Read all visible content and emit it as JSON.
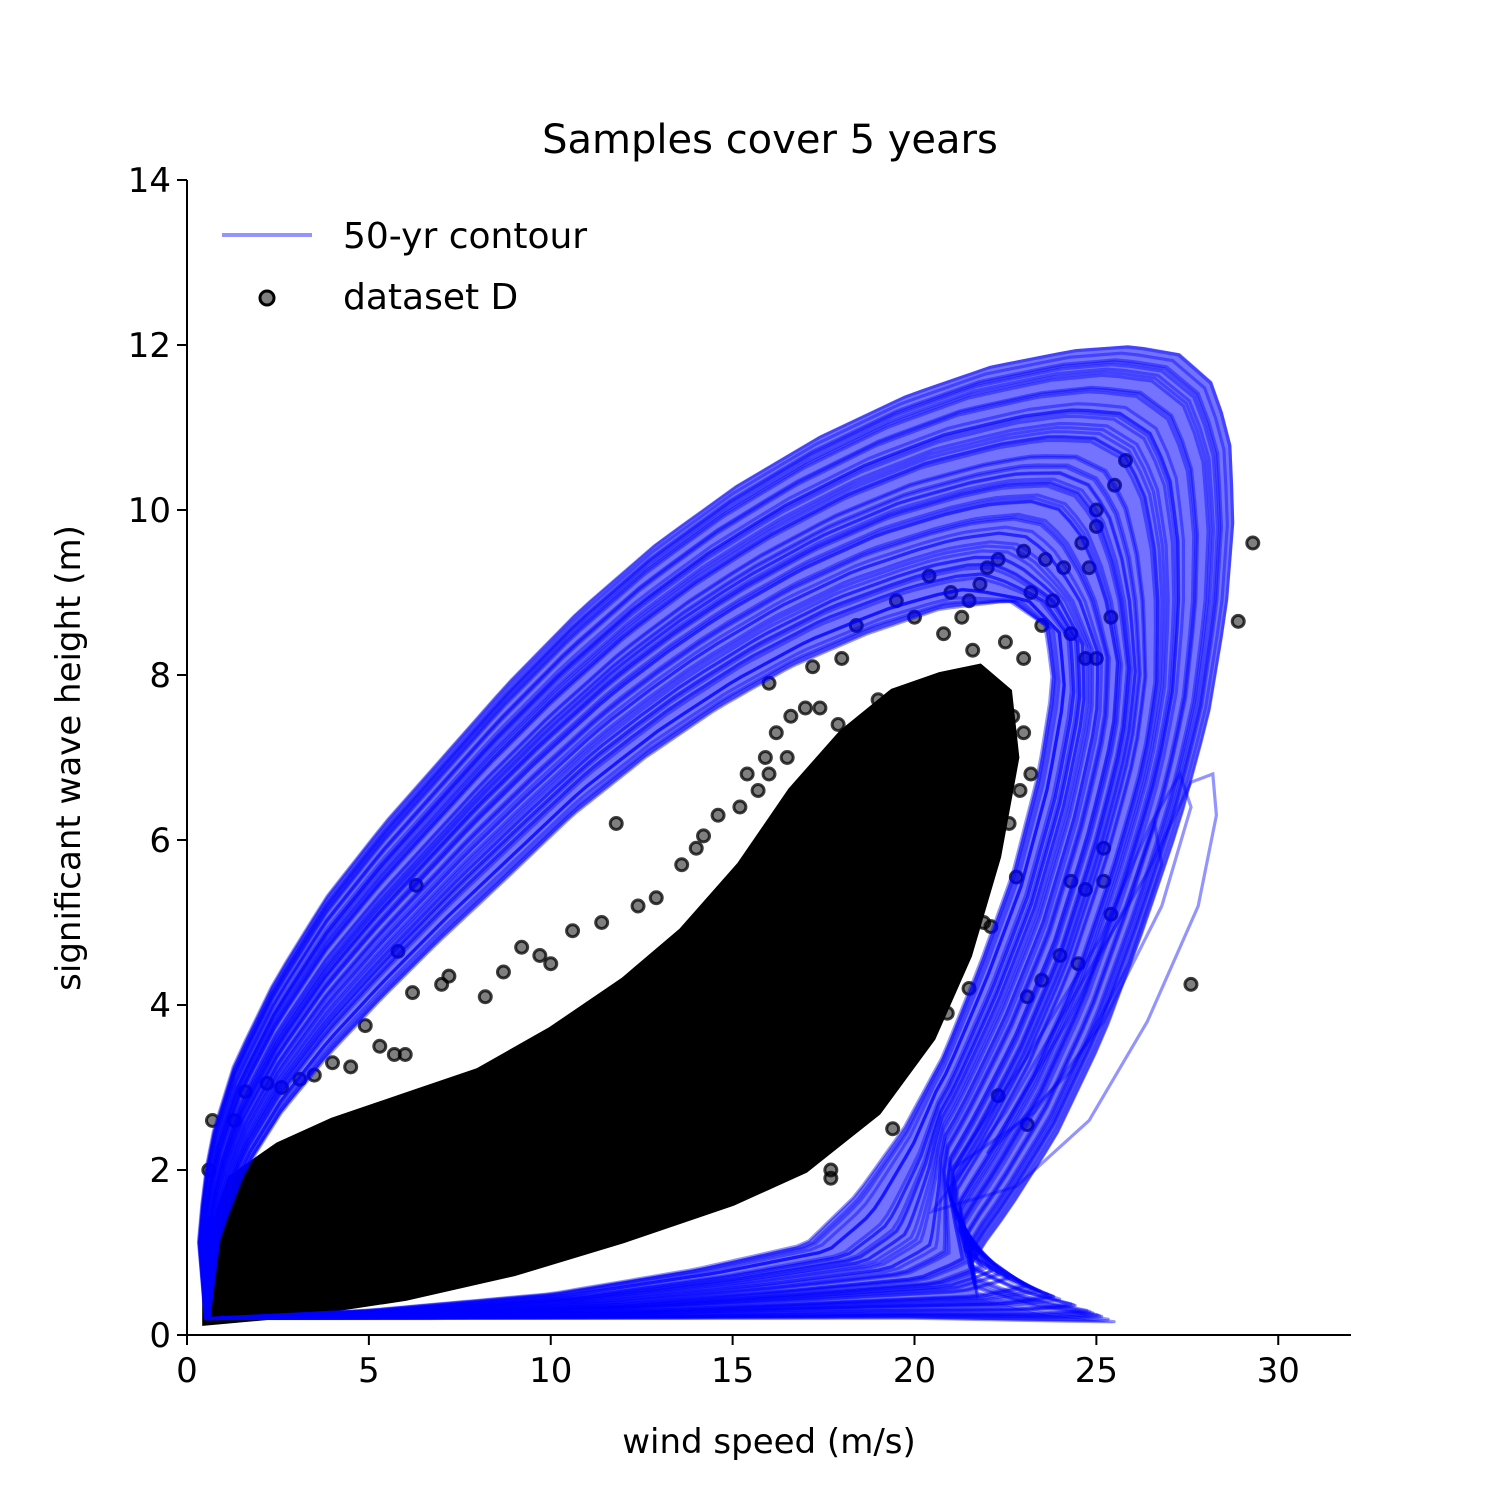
{
  "chart_data": {
    "type": "scatter",
    "title": "Samples cover 5 years",
    "xlabel": "wind speed (m/s)",
    "ylabel": "significant wave height (m)",
    "xlim": [
      0,
      32
    ],
    "ylim": [
      0,
      14
    ],
    "xticks": [
      0,
      5,
      10,
      15,
      20,
      25,
      30
    ],
    "yticks": [
      0,
      2,
      4,
      6,
      8,
      10,
      12,
      14
    ],
    "grid": false,
    "legend_position": "top-left",
    "legend": [
      {
        "label": "50-yr contour",
        "kind": "line",
        "color": "#0000ff"
      },
      {
        "label": "dataset D",
        "kind": "marker",
        "color": "#000000"
      }
    ],
    "series": [
      {
        "name": "50-yr contour",
        "kind": "contours",
        "color": "#0000ff",
        "contour_count": 60,
        "outer_contour": [
          [
            0.5,
            0.2
          ],
          [
            0.3,
            1.2
          ],
          [
            0.6,
            2.3
          ],
          [
            1.3,
            3.3
          ],
          [
            2.4,
            4.3
          ],
          [
            3.8,
            5.3
          ],
          [
            5.4,
            6.2
          ],
          [
            7.0,
            7.0
          ],
          [
            8.8,
            7.9
          ],
          [
            10.8,
            8.8
          ],
          [
            12.9,
            9.6
          ],
          [
            15.1,
            10.3
          ],
          [
            17.4,
            10.9
          ],
          [
            19.8,
            11.4
          ],
          [
            22.1,
            11.75
          ],
          [
            24.4,
            11.95
          ],
          [
            26.0,
            12.0
          ],
          [
            27.3,
            11.9
          ],
          [
            28.2,
            11.55
          ],
          [
            28.7,
            10.9
          ],
          [
            28.8,
            9.9
          ],
          [
            28.6,
            8.8
          ],
          [
            28.1,
            7.5
          ],
          [
            27.3,
            6.2
          ],
          [
            26.3,
            4.9
          ],
          [
            25.2,
            3.6
          ],
          [
            23.9,
            2.4
          ],
          [
            22.6,
            1.5
          ],
          [
            21.6,
            0.9
          ],
          [
            21.7,
            0.45
          ],
          [
            23.5,
            0.25
          ],
          [
            25.6,
            0.15
          ],
          [
            20.0,
            0.2
          ],
          [
            10.0,
            0.2
          ],
          [
            0.5,
            0.2
          ]
        ],
        "inner_contour": [
          [
            0.6,
            0.2
          ],
          [
            0.9,
            1.2
          ],
          [
            1.6,
            2.0
          ],
          [
            2.6,
            2.7
          ],
          [
            3.9,
            3.4
          ],
          [
            5.4,
            4.1
          ],
          [
            7.0,
            4.8
          ],
          [
            8.7,
            5.5
          ],
          [
            10.6,
            6.3
          ],
          [
            12.6,
            7.0
          ],
          [
            14.6,
            7.6
          ],
          [
            16.6,
            8.1
          ],
          [
            18.7,
            8.5
          ],
          [
            20.7,
            8.8
          ],
          [
            22.6,
            8.9
          ],
          [
            23.6,
            8.6
          ],
          [
            23.8,
            7.9
          ],
          [
            23.4,
            6.8
          ],
          [
            22.7,
            5.6
          ],
          [
            21.8,
            4.5
          ],
          [
            20.8,
            3.4
          ],
          [
            19.7,
            2.5
          ],
          [
            18.4,
            1.7
          ],
          [
            17.0,
            1.1
          ],
          [
            14.0,
            0.8
          ],
          [
            10.0,
            0.5
          ],
          [
            5.0,
            0.3
          ],
          [
            0.6,
            0.2
          ]
        ],
        "outlier_loops": [
          [
            [
              20.5,
              1.5
            ],
            [
              22.5,
              2.7
            ],
            [
              24.5,
              4.2
            ],
            [
              26.4,
              5.6
            ],
            [
              27.6,
              6.7
            ],
            [
              28.2,
              6.8
            ],
            [
              28.3,
              6.3
            ],
            [
              27.8,
              5.2
            ],
            [
              26.4,
              3.8
            ],
            [
              24.8,
              2.6
            ],
            [
              22.8,
              1.8
            ],
            [
              20.5,
              1.5
            ]
          ],
          [
            [
              21.0,
              2.0
            ],
            [
              23.0,
              3.3
            ],
            [
              25.1,
              4.8
            ],
            [
              26.5,
              6.2
            ],
            [
              27.3,
              6.8
            ],
            [
              27.6,
              6.4
            ],
            [
              26.8,
              5.2
            ],
            [
              25.2,
              3.8
            ],
            [
              23.3,
              2.7
            ],
            [
              21.0,
              2.0
            ]
          ],
          [
            [
              22.0,
              2.2
            ],
            [
              24.2,
              3.8
            ],
            [
              25.8,
              5.2
            ],
            [
              26.6,
              6.2
            ],
            [
              26.8,
              5.7
            ],
            [
              25.9,
              4.5
            ],
            [
              24.3,
              3.2
            ],
            [
              22.0,
              2.2
            ]
          ]
        ]
      },
      {
        "name": "dataset D",
        "kind": "points",
        "color": "#000000",
        "opacity": 0.5,
        "dense_region": [
          [
            0.5,
            0.15
          ],
          [
            3.0,
            0.25
          ],
          [
            6.0,
            0.45
          ],
          [
            9.0,
            0.75
          ],
          [
            12.0,
            1.15
          ],
          [
            15.0,
            1.6
          ],
          [
            17.0,
            2.0
          ],
          [
            19.0,
            2.7
          ],
          [
            20.5,
            3.6
          ],
          [
            21.5,
            4.6
          ],
          [
            22.3,
            5.8
          ],
          [
            22.8,
            7.0
          ],
          [
            22.6,
            7.8
          ],
          [
            21.8,
            8.1
          ],
          [
            20.7,
            8.0
          ],
          [
            19.4,
            7.8
          ],
          [
            18.0,
            7.3
          ],
          [
            16.6,
            6.6
          ],
          [
            15.2,
            5.7
          ],
          [
            13.6,
            4.9
          ],
          [
            12.0,
            4.3
          ],
          [
            10.0,
            3.7
          ],
          [
            8.0,
            3.2
          ],
          [
            6.0,
            2.9
          ],
          [
            4.0,
            2.6
          ],
          [
            2.5,
            2.3
          ],
          [
            1.2,
            1.9
          ],
          [
            0.5,
            1.0
          ],
          [
            0.5,
            0.15
          ]
        ],
        "extreme_points": [
          [
            29.3,
            9.6
          ],
          [
            28.9,
            8.65
          ],
          [
            27.6,
            4.25
          ],
          [
            23.1,
            2.55
          ],
          [
            22.3,
            2.9
          ],
          [
            25.2,
            5.5
          ],
          [
            25.2,
            5.9
          ],
          [
            25.4,
            5.1
          ],
          [
            24.3,
            5.5
          ],
          [
            24.7,
            5.4
          ],
          [
            23.1,
            4.1
          ],
          [
            22.8,
            5.55
          ],
          [
            24.5,
            4.5
          ],
          [
            24.0,
            4.6
          ],
          [
            23.5,
            4.3
          ],
          [
            21.3,
            8.7
          ],
          [
            21.8,
            9.1
          ],
          [
            22.3,
            9.4
          ],
          [
            23.0,
            9.5
          ],
          [
            23.6,
            9.4
          ],
          [
            24.1,
            9.3
          ],
          [
            24.6,
            9.6
          ],
          [
            25.0,
            10.0
          ],
          [
            25.5,
            10.3
          ],
          [
            25.8,
            10.6
          ],
          [
            25.0,
            9.8
          ],
          [
            24.8,
            9.3
          ],
          [
            23.8,
            8.9
          ],
          [
            23.5,
            8.6
          ],
          [
            23.0,
            8.2
          ],
          [
            22.5,
            8.4
          ],
          [
            21.5,
            8.9
          ],
          [
            20.0,
            8.7
          ],
          [
            19.5,
            8.9
          ],
          [
            20.4,
            9.2
          ],
          [
            21.0,
            9.0
          ],
          [
            22.0,
            9.3
          ],
          [
            23.2,
            9.0
          ],
          [
            24.3,
            8.5
          ],
          [
            25.0,
            8.2
          ],
          [
            25.4,
            8.7
          ],
          [
            24.7,
            8.2
          ],
          [
            23.0,
            7.3
          ],
          [
            22.7,
            7.5
          ],
          [
            22.9,
            6.6
          ],
          [
            23.2,
            6.8
          ],
          [
            22.6,
            6.2
          ],
          [
            22.2,
            6.0
          ],
          [
            21.8,
            5.6
          ],
          [
            21.0,
            5.8
          ],
          [
            20.4,
            6.3
          ],
          [
            19.9,
            6.6
          ],
          [
            20.2,
            6.9
          ],
          [
            19.3,
            7.3
          ],
          [
            18.6,
            7.4
          ],
          [
            17.9,
            7.4
          ],
          [
            17.4,
            7.6
          ],
          [
            17.0,
            7.6
          ],
          [
            16.6,
            7.5
          ],
          [
            16.2,
            7.3
          ],
          [
            16.5,
            7.0
          ],
          [
            15.9,
            7.0
          ],
          [
            16.0,
            6.8
          ],
          [
            15.7,
            6.6
          ],
          [
            15.4,
            6.8
          ],
          [
            15.2,
            6.4
          ],
          [
            14.6,
            6.3
          ],
          [
            14.2,
            6.05
          ],
          [
            14.0,
            5.9
          ],
          [
            13.6,
            5.7
          ],
          [
            12.9,
            5.3
          ],
          [
            12.4,
            5.2
          ],
          [
            11.8,
            6.2
          ],
          [
            11.4,
            5.0
          ],
          [
            10.6,
            4.9
          ],
          [
            10.0,
            4.5
          ],
          [
            9.7,
            4.6
          ],
          [
            9.2,
            4.7
          ],
          [
            8.7,
            4.4
          ],
          [
            8.2,
            4.1
          ],
          [
            6.3,
            5.45
          ],
          [
            5.8,
            4.65
          ],
          [
            6.2,
            4.15
          ],
          [
            7.2,
            4.35
          ],
          [
            7.0,
            4.25
          ],
          [
            4.9,
            3.75
          ],
          [
            5.3,
            3.5
          ],
          [
            6.0,
            3.4
          ],
          [
            5.7,
            3.4
          ],
          [
            4.5,
            3.25
          ],
          [
            4.0,
            3.3
          ],
          [
            3.5,
            3.15
          ],
          [
            3.1,
            3.1
          ],
          [
            2.6,
            3.0
          ],
          [
            2.2,
            3.05
          ],
          [
            1.6,
            2.95
          ],
          [
            1.3,
            2.6
          ],
          [
            0.7,
            2.6
          ],
          [
            0.6,
            2.0
          ],
          [
            18.4,
            8.6
          ],
          [
            18.0,
            8.2
          ],
          [
            17.2,
            8.1
          ],
          [
            16.0,
            7.9
          ],
          [
            19.0,
            7.7
          ],
          [
            21.2,
            7.9
          ],
          [
            20.8,
            8.5
          ],
          [
            21.6,
            8.3
          ],
          [
            17.7,
            1.9
          ],
          [
            17.2,
            2.2
          ],
          [
            16.6,
            2.35
          ],
          [
            17.7,
            2.0
          ],
          [
            21.9,
            5.0
          ],
          [
            22.1,
            4.95
          ],
          [
            20.9,
            3.9
          ],
          [
            21.5,
            4.2
          ],
          [
            19.8,
            3.3
          ],
          [
            20.1,
            3.7
          ],
          [
            18.8,
            2.9
          ],
          [
            19.4,
            2.5
          ]
        ]
      }
    ]
  }
}
